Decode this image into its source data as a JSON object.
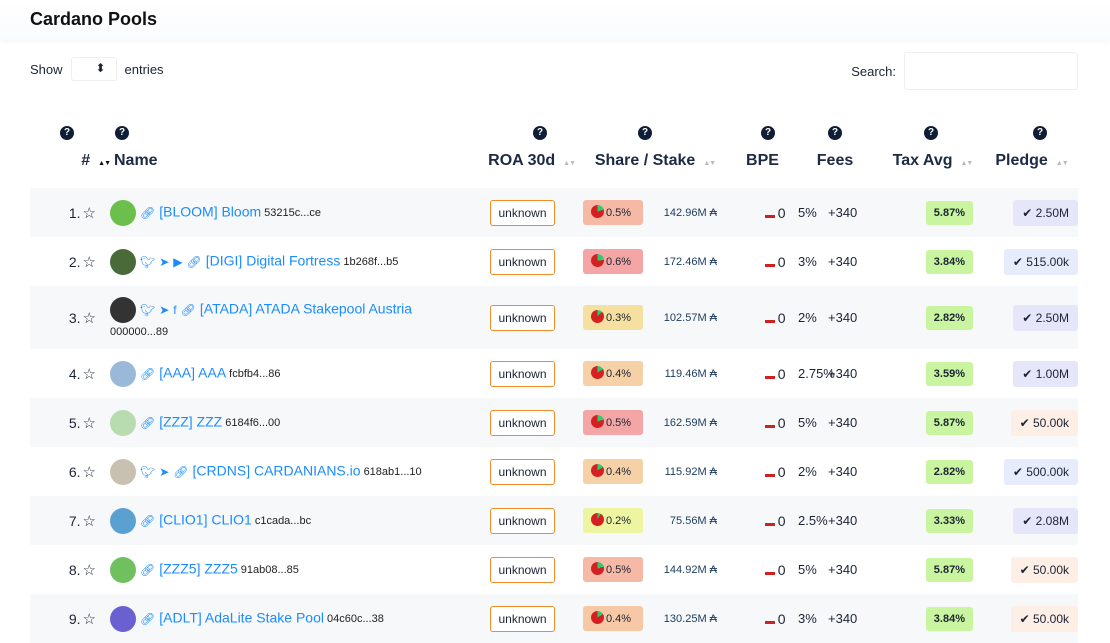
{
  "title": "Cardano Pools",
  "show_label": "Show",
  "entries_label": "entries",
  "search_label": "Search:",
  "search_value": "",
  "columns": [
    "#",
    "Name",
    "ROA 30d",
    "Share / Stake",
    "BPE",
    "Fees",
    "Tax Avg",
    "Pledge"
  ],
  "colors": {
    "link": "#1a8cff",
    "unknown_border": "#f28c28",
    "tax_bg": "#c9f5a0"
  },
  "rows": [
    {
      "rank": "1.",
      "name": "[BLOOM] Bloom",
      "hash": "53215c...ce",
      "icons": [
        "link"
      ],
      "roa": "unknown",
      "share": "0.5%",
      "share_bg": "#f6b9a6",
      "stake": "142.96M ₳",
      "bpe": "0",
      "fee_pct": "5%",
      "fee_fixed": "+340",
      "tax": "5.87%",
      "pledge": "2.50M",
      "pledge_bg": "#e6e6fb",
      "avatar": "#6cbf4a"
    },
    {
      "rank": "2.",
      "name": "[DIGI] Digital Fortress",
      "hash": "1b268f...b5",
      "icons": [
        "twitter",
        "telegram",
        "youtube",
        "link"
      ],
      "roa": "unknown",
      "share": "0.6%",
      "share_bg": "#f4a6a6",
      "stake": "172.46M ₳",
      "bpe": "0",
      "fee_pct": "3%",
      "fee_fixed": "+340",
      "tax": "3.84%",
      "pledge": "515.00k",
      "pledge_bg": "#e6ecfb",
      "avatar": "#4a6a3a"
    },
    {
      "rank": "3.",
      "name": "[ATADA] ATADA Stakepool Austria",
      "hash": "000000...89",
      "icons": [
        "twitter",
        "telegram",
        "facebook",
        "link"
      ],
      "roa": "unknown",
      "share": "0.3%",
      "share_bg": "#f5e0a0",
      "stake": "102.57M ₳",
      "bpe": "0",
      "fee_pct": "2%",
      "fee_fixed": "+340",
      "tax": "2.82%",
      "pledge": "2.50M",
      "pledge_bg": "#e6e6fb",
      "avatar": "#333"
    },
    {
      "rank": "4.",
      "name": "[AAA] AAA",
      "hash": "fcbfb4...86",
      "icons": [
        "link"
      ],
      "roa": "unknown",
      "share": "0.4%",
      "share_bg": "#f6d0a6",
      "stake": "119.46M ₳",
      "bpe": "0",
      "fee_pct": "2.75%",
      "fee_fixed": "+340",
      "tax": "3.59%",
      "pledge": "1.00M",
      "pledge_bg": "#e6e6fb",
      "avatar": "#9ab8d8"
    },
    {
      "rank": "5.",
      "name": "[ZZZ] ZZZ",
      "hash": "6184f6...00",
      "icons": [
        "link"
      ],
      "roa": "unknown",
      "share": "0.5%",
      "share_bg": "#f4a6a6",
      "stake": "162.59M ₳",
      "bpe": "0",
      "fee_pct": "5%",
      "fee_fixed": "+340",
      "tax": "5.87%",
      "pledge": "50.00k",
      "pledge_bg": "#fdeee6",
      "avatar": "#b8dcb0"
    },
    {
      "rank": "6.",
      "name": "[CRDNS] CARDANIANS.io",
      "hash": "618ab1...10",
      "icons": [
        "twitter",
        "telegram",
        "link"
      ],
      "roa": "unknown",
      "share": "0.4%",
      "share_bg": "#f6d0a6",
      "stake": "115.92M ₳",
      "bpe": "0",
      "fee_pct": "2%",
      "fee_fixed": "+340",
      "tax": "2.82%",
      "pledge": "500.00k",
      "pledge_bg": "#e6ecfb",
      "avatar": "#c8c0b0"
    },
    {
      "rank": "7.",
      "name": "[CLIO1] CLIO1",
      "hash": "c1cada...bc",
      "icons": [
        "link"
      ],
      "roa": "unknown",
      "share": "0.2%",
      "share_bg": "#eef5a0",
      "stake": "75.56M ₳",
      "bpe": "0",
      "fee_pct": "2.5%",
      "fee_fixed": "+340",
      "tax": "3.33%",
      "pledge": "2.08M",
      "pledge_bg": "#e6e6fb",
      "avatar": "#5aa0d0"
    },
    {
      "rank": "8.",
      "name": "[ZZZ5] ZZZ5",
      "hash": "91ab08...85",
      "icons": [
        "link"
      ],
      "roa": "unknown",
      "share": "0.5%",
      "share_bg": "#f6b9a6",
      "stake": "144.92M ₳",
      "bpe": "0",
      "fee_pct": "5%",
      "fee_fixed": "+340",
      "tax": "5.87%",
      "pledge": "50.00k",
      "pledge_bg": "#fdeee6",
      "avatar": "#70c060"
    },
    {
      "rank": "9.",
      "name": "[ADLT] AdaLite Stake Pool",
      "hash": "04c60c...38",
      "icons": [
        "link"
      ],
      "roa": "unknown",
      "share": "0.4%",
      "share_bg": "#f6c8a6",
      "stake": "130.25M ₳",
      "bpe": "0",
      "fee_pct": "3%",
      "fee_fixed": "+340",
      "tax": "3.84%",
      "pledge": "50.00k",
      "pledge_bg": "#fdeee6",
      "avatar": "#6a60d0"
    }
  ]
}
